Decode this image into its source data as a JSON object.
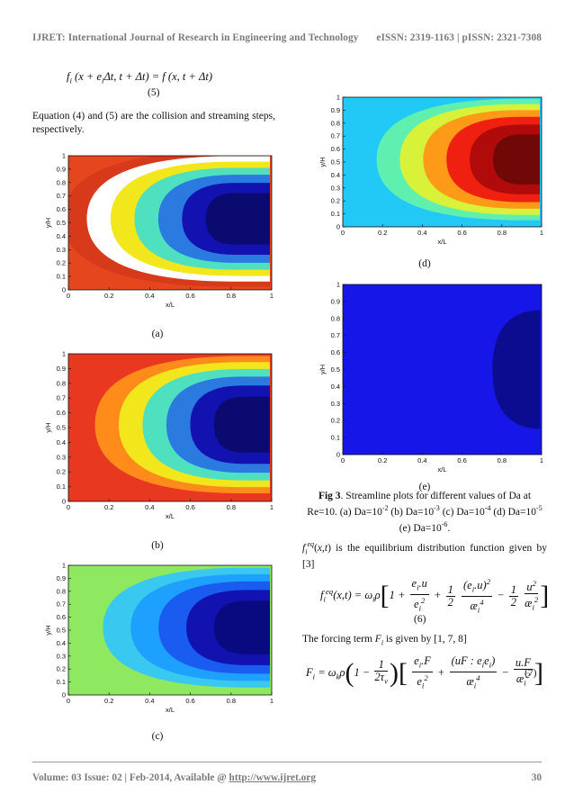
{
  "header": {
    "journal": "IJRET: International Journal of Research in Engineering and Technology",
    "issn": "eISSN: 2319-1163 | pISSN: 2321-7308"
  },
  "footer": {
    "volume": "Volume: 03 Issue: 02 | Feb-2014, Available @ ",
    "url": "http://www.ijret.org",
    "page": "30"
  },
  "left_column": {
    "equation5": "f_i(x + e_i Δt, t + Δt) = f(x, t + Δt)",
    "equation5_number": "(5)",
    "paragraph": "Equation (4) and (5) are the collision and streaming steps, respectively."
  },
  "right_column": {
    "eq_intro": "is the equilibrium distribution function given by [3]",
    "equation6_number": "(6)",
    "forcing_intro": "The forcing term",
    "forcing_ref": "is given by [1, 7, 8]",
    "equation7_number": "(7)"
  },
  "figure": {
    "label": "Fig 3",
    "caption": ". Streamline plots for different values of Da at Re=10. (a) Da=10",
    "caption_full": "Fig 3. Streamline plots for different values of Da at Re=10. (a) Da=10-2 (b) Da=10-3 (c) Da=10-4 (d) Da=10-5 (e) Da=10-6",
    "xlabel": "x/L",
    "ylabel": "y/H",
    "xticks": [
      "0",
      "0.2",
      "0.4",
      "0.6",
      "0.8",
      "1"
    ],
    "yticks": [
      "0",
      "0.1",
      "0.2",
      "0.3",
      "0.4",
      "0.5",
      "0.6",
      "0.7",
      "0.8",
      "0.9",
      "1"
    ]
  },
  "chart_data": [
    {
      "type": "heatmap",
      "label": "(a)",
      "xlim": [
        0,
        1
      ],
      "ylim": [
        0,
        1
      ],
      "bands": [
        "#d63a1a",
        "#ffffff",
        "#f2e61c",
        "#4fe0c0",
        "#2a7ae0",
        "#1212b0",
        "#0a0a70"
      ],
      "background": "#e6461e",
      "vortex_center": [
        0.82,
        0.53
      ]
    },
    {
      "type": "heatmap",
      "label": "(b)",
      "xlim": [
        0,
        1
      ],
      "ylim": [
        0,
        1
      ],
      "bands": [
        "#e83820",
        "#ff8c1a",
        "#f2e61c",
        "#4fe0c0",
        "#2a7ae0",
        "#1212b0",
        "#0a0a70"
      ],
      "background": "#e83820",
      "vortex_center": [
        0.86,
        0.52
      ]
    },
    {
      "type": "heatmap",
      "label": "(c)",
      "xlim": [
        0,
        1
      ],
      "ylim": [
        0,
        1
      ],
      "bands": [
        "#8ee860",
        "#38c8f0",
        "#1ea0ff",
        "#1a5cf0",
        "#1212b0",
        "#0a0a80"
      ],
      "background": "#8ee860",
      "vortex_center": [
        0.88,
        0.52
      ]
    },
    {
      "type": "heatmap",
      "label": "(d)",
      "xlim": [
        0,
        1
      ],
      "ylim": [
        0,
        1
      ],
      "bands": [
        "#22c8f6",
        "#5ff0b0",
        "#d8f23a",
        "#ff9a18",
        "#f02010",
        "#b00a0a",
        "#700808"
      ],
      "background": "#22c8f6",
      "vortex_center": [
        0.9,
        0.52
      ]
    },
    {
      "type": "heatmap",
      "label": "(e)",
      "xlim": [
        0,
        1
      ],
      "ylim": [
        0,
        1
      ],
      "bands": [
        "#1616e8",
        "#0c0c90"
      ],
      "background": "#1616e8",
      "vortex_center": [
        1.0,
        0.5
      ]
    }
  ]
}
